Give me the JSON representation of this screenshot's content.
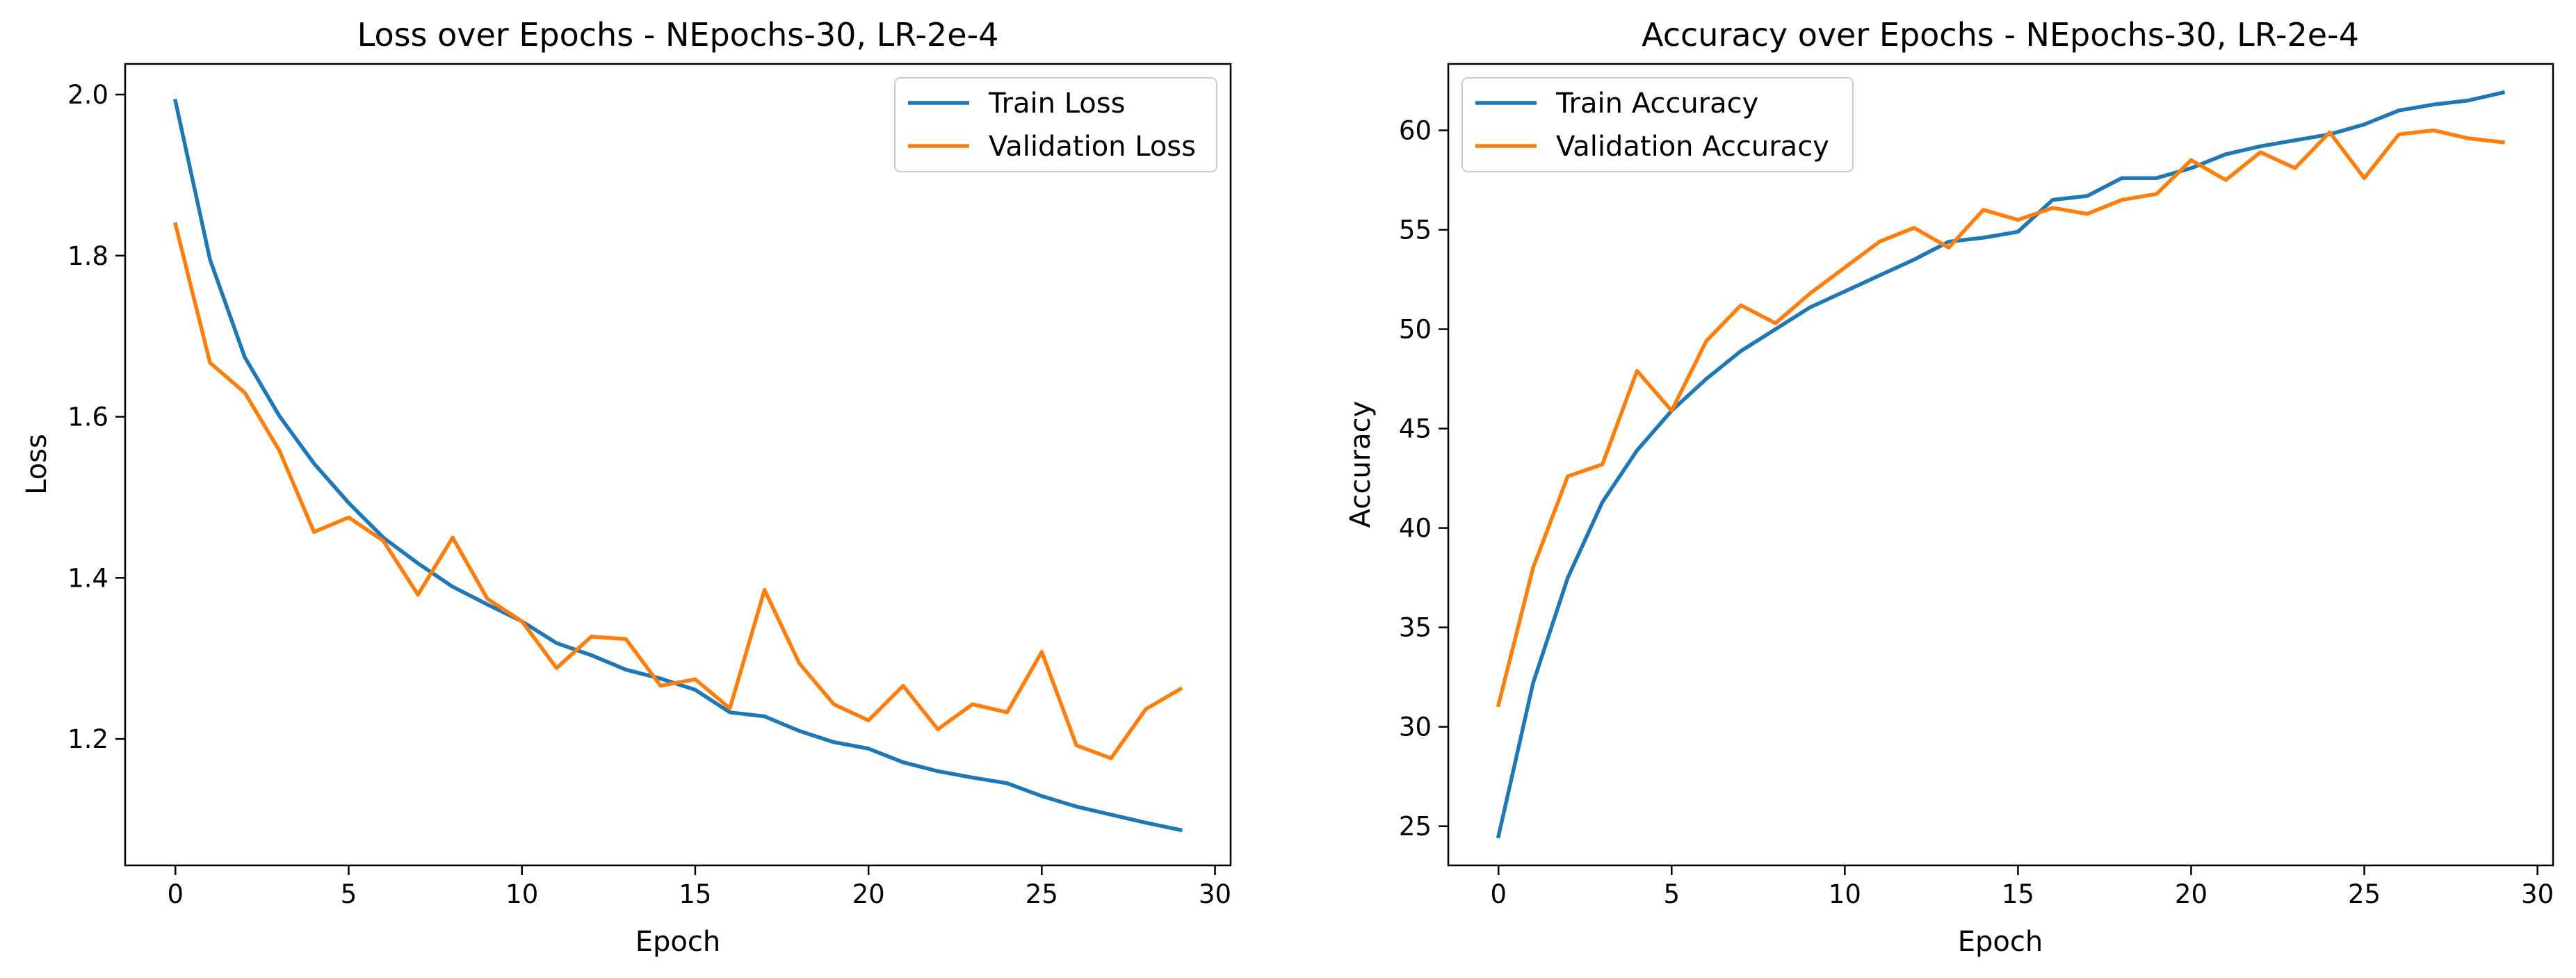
{
  "figure": {
    "background": "#ffffff"
  },
  "chart_data": [
    {
      "type": "line",
      "title": "Loss over Epochs - NEpochs-30, LR-2e-4",
      "xlabel": "Epoch",
      "ylabel": "Loss",
      "xlim": [
        -1.45,
        30.45
      ],
      "ylim": [
        1.043,
        2.038
      ],
      "xticks": [
        0,
        5,
        10,
        15,
        20,
        25,
        30
      ],
      "xtick_labels": [
        "0",
        "5",
        "10",
        "15",
        "20",
        "25",
        "30"
      ],
      "yticks": [
        1.2,
        1.4,
        1.6,
        1.8,
        2.0
      ],
      "ytick_labels": [
        "1.2",
        "1.4",
        "1.6",
        "1.8",
        "2.0"
      ],
      "grid": false,
      "legend_position": "top-right",
      "x": [
        0,
        1,
        2,
        3,
        4,
        5,
        6,
        7,
        8,
        9,
        10,
        11,
        12,
        13,
        14,
        15,
        16,
        17,
        18,
        19,
        20,
        21,
        22,
        23,
        24,
        25,
        26,
        27,
        28,
        29
      ],
      "series": [
        {
          "name": "Train Loss",
          "color": "#1f77b4",
          "values": [
            1.992,
            1.795,
            1.674,
            1.601,
            1.542,
            1.493,
            1.45,
            1.418,
            1.389,
            1.367,
            1.346,
            1.319,
            1.304,
            1.286,
            1.275,
            1.261,
            1.233,
            1.228,
            1.21,
            1.196,
            1.188,
            1.171,
            1.16,
            1.152,
            1.145,
            1.129,
            1.116,
            1.106,
            1.096,
            1.087
          ]
        },
        {
          "name": "Validation Loss",
          "color": "#ff7f0e",
          "values": [
            1.839,
            1.667,
            1.63,
            1.558,
            1.457,
            1.475,
            1.446,
            1.379,
            1.45,
            1.374,
            1.346,
            1.288,
            1.327,
            1.324,
            1.266,
            1.274,
            1.238,
            1.385,
            1.294,
            1.243,
            1.223,
            1.266,
            1.212,
            1.243,
            1.233,
            1.308,
            1.192,
            1.176,
            1.237,
            1.262
          ]
        }
      ]
    },
    {
      "type": "line",
      "title": "Accuracy over Epochs - NEpochs-30, LR-2e-4",
      "xlabel": "Epoch",
      "ylabel": "Accuracy",
      "xlim": [
        -1.45,
        30.45
      ],
      "ylim": [
        23.03,
        63.34
      ],
      "xticks": [
        0,
        5,
        10,
        15,
        20,
        25,
        30
      ],
      "xtick_labels": [
        "0",
        "5",
        "10",
        "15",
        "20",
        "25",
        "30"
      ],
      "yticks": [
        25,
        30,
        35,
        40,
        45,
        50,
        55,
        60
      ],
      "ytick_labels": [
        "25",
        "30",
        "35",
        "40",
        "45",
        "50",
        "55",
        "60"
      ],
      "grid": false,
      "legend_position": "top-left",
      "x": [
        0,
        1,
        2,
        3,
        4,
        5,
        6,
        7,
        8,
        9,
        10,
        11,
        12,
        13,
        14,
        15,
        16,
        17,
        18,
        19,
        20,
        21,
        22,
        23,
        24,
        25,
        26,
        27,
        28,
        29
      ],
      "series": [
        {
          "name": "Train Accuracy",
          "color": "#1f77b4",
          "values": [
            24.5,
            32.2,
            37.5,
            41.3,
            43.9,
            45.9,
            47.5,
            48.9,
            50.0,
            51.1,
            51.9,
            52.7,
            53.5,
            54.4,
            54.6,
            54.9,
            56.5,
            56.7,
            57.6,
            57.6,
            58.1,
            58.8,
            59.2,
            59.5,
            59.8,
            60.3,
            61.0,
            61.3,
            61.5,
            61.9
          ]
        },
        {
          "name": "Validation Accuracy",
          "color": "#ff7f0e",
          "values": [
            31.1,
            38.0,
            42.6,
            43.2,
            47.9,
            45.9,
            49.4,
            51.2,
            50.3,
            51.8,
            53.1,
            54.4,
            55.1,
            54.1,
            56.0,
            55.5,
            56.1,
            55.8,
            56.5,
            56.8,
            58.5,
            57.5,
            58.9,
            58.1,
            59.9,
            57.6,
            59.8,
            60.0,
            59.6,
            59.4
          ]
        }
      ]
    }
  ]
}
